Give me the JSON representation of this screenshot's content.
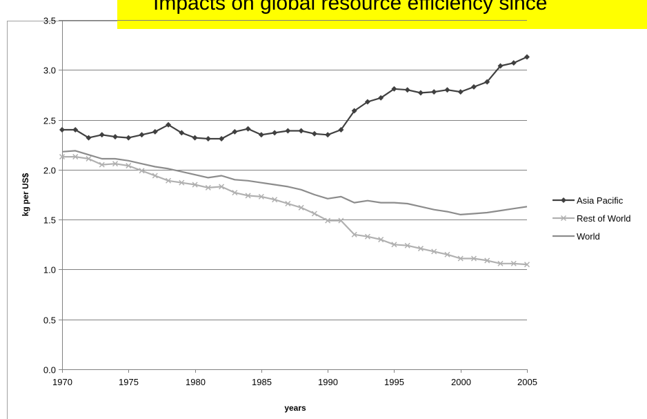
{
  "banner": {
    "text": "Impacts on global resource efficiency since",
    "color": "#ffff00"
  },
  "chart_data": {
    "type": "line",
    "title": "",
    "xlabel": "years",
    "ylabel": "kg per US$",
    "xlim": [
      1970,
      2005
    ],
    "ylim": [
      0,
      3.5
    ],
    "xticks": [
      1970,
      1975,
      1980,
      1985,
      1990,
      1995,
      2000,
      2005
    ],
    "yticks": [
      "0.0",
      "0.5",
      "1.0",
      "1.5",
      "2.0",
      "2.5",
      "3.0",
      "3.5"
    ],
    "grid": "horizontal",
    "legend_position": "right",
    "x": [
      1970,
      1971,
      1972,
      1973,
      1974,
      1975,
      1976,
      1977,
      1978,
      1979,
      1980,
      1981,
      1982,
      1983,
      1984,
      1985,
      1986,
      1987,
      1988,
      1989,
      1990,
      1991,
      1992,
      1993,
      1994,
      1995,
      1996,
      1997,
      1998,
      1999,
      2000,
      2001,
      2002,
      2003,
      2004,
      2005
    ],
    "series": [
      {
        "name": "Asia Pacific",
        "color": "#404040",
        "marker": "diamond",
        "values": [
          2.4,
          2.4,
          2.32,
          2.35,
          2.33,
          2.32,
          2.35,
          2.38,
          2.45,
          2.37,
          2.32,
          2.31,
          2.31,
          2.38,
          2.41,
          2.35,
          2.37,
          2.39,
          2.39,
          2.36,
          2.35,
          2.4,
          2.59,
          2.68,
          2.72,
          2.81,
          2.8,
          2.77,
          2.78,
          2.8,
          2.78,
          2.83,
          2.88,
          3.04,
          3.07,
          3.13
        ]
      },
      {
        "name": "Rest of World",
        "color": "#b0b0b0",
        "marker": "x",
        "values": [
          2.13,
          2.13,
          2.11,
          2.05,
          2.06,
          2.04,
          1.99,
          1.94,
          1.89,
          1.87,
          1.85,
          1.82,
          1.83,
          1.77,
          1.74,
          1.73,
          1.7,
          1.66,
          1.62,
          1.56,
          1.49,
          1.49,
          1.35,
          1.33,
          1.3,
          1.25,
          1.24,
          1.21,
          1.18,
          1.15,
          1.11,
          1.11,
          1.09,
          1.06,
          1.06,
          1.05
        ]
      },
      {
        "name": "World",
        "color": "#8c8c8c",
        "marker": "none",
        "values": [
          2.18,
          2.19,
          2.15,
          2.11,
          2.11,
          2.09,
          2.06,
          2.03,
          2.01,
          1.98,
          1.95,
          1.92,
          1.94,
          1.9,
          1.89,
          1.87,
          1.85,
          1.83,
          1.8,
          1.75,
          1.71,
          1.73,
          1.67,
          1.69,
          1.67,
          1.67,
          1.66,
          1.63,
          1.6,
          1.58,
          1.55,
          1.56,
          1.57,
          1.59,
          1.61,
          1.63
        ]
      }
    ]
  }
}
